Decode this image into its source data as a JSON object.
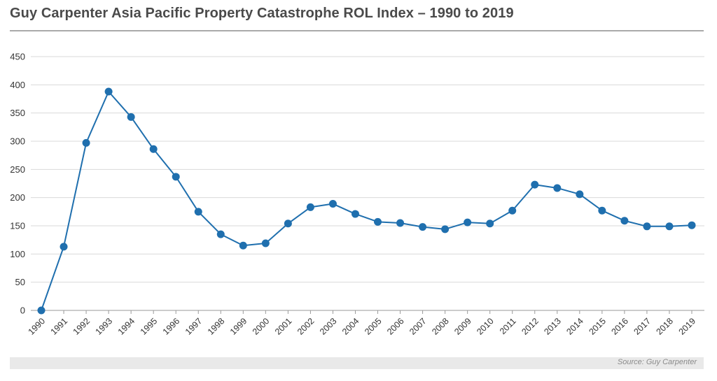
{
  "title": "Guy Carpenter Asia Pacific Property Catastrophe ROL Index – 1990 to 2019",
  "source": "Source: Guy Carpenter",
  "colors": {
    "line": "#1f6fae",
    "grid": "#d9d9d9",
    "text": "#333333"
  },
  "chart_data": {
    "type": "line",
    "title": "Guy Carpenter Asia Pacific Property Catastrophe ROL Index – 1990 to 2019",
    "xlabel": "",
    "ylabel": "",
    "ylim": [
      0,
      450
    ],
    "yticks": [
      0,
      50,
      100,
      150,
      200,
      250,
      300,
      350,
      400,
      450
    ],
    "grid": true,
    "legend": "none",
    "x": [
      "1990",
      "1991",
      "1992",
      "1993",
      "1994",
      "1995",
      "1996",
      "1997",
      "1998",
      "1999",
      "2000",
      "2001",
      "2002",
      "2003",
      "2004",
      "2005",
      "2006",
      "2007",
      "2008",
      "2009",
      "2010",
      "2011",
      "2012",
      "2013",
      "2014",
      "2015",
      "2016",
      "2017",
      "2018",
      "2019"
    ],
    "series": [
      {
        "values": [
          0,
          113,
          297,
          388,
          343,
          286,
          237,
          175,
          135,
          115,
          119,
          154,
          183,
          189,
          171,
          157,
          155,
          148,
          144,
          156,
          154,
          177,
          223,
          217,
          206,
          177,
          159,
          149,
          149,
          151
        ]
      }
    ]
  }
}
